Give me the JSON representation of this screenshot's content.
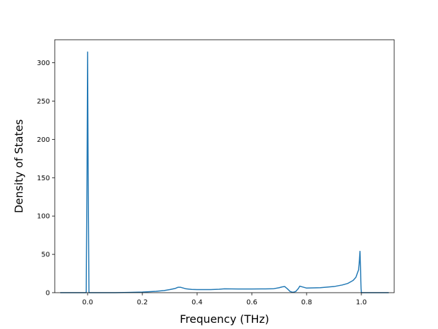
{
  "chart_data": {
    "type": "line",
    "title": "",
    "xlabel": "Frequency (THz)",
    "ylabel": "Density of States",
    "xlim": [
      -0.12,
      1.12
    ],
    "ylim": [
      0,
      330
    ],
    "xticks": [
      0.0,
      0.2,
      0.4,
      0.6,
      0.8,
      1.0
    ],
    "xtick_labels": [
      "0.0",
      "0.2",
      "0.4",
      "0.6",
      "0.8",
      "1.0"
    ],
    "yticks": [
      0,
      50,
      100,
      150,
      200,
      250,
      300
    ],
    "ytick_labels": [
      "0",
      "50",
      "100",
      "150",
      "200",
      "250",
      "300"
    ],
    "grid": false,
    "legend": "none",
    "colors": {
      "line": "#1f77b4",
      "axes": "#000000",
      "background": "#ffffff"
    },
    "series": [
      {
        "x": [
          -0.1,
          -0.05,
          -0.005,
          -0.002,
          0.0,
          0.002,
          0.005,
          0.05,
          0.1,
          0.15,
          0.2,
          0.25,
          0.28,
          0.3,
          0.32,
          0.33,
          0.34,
          0.35,
          0.36,
          0.38,
          0.4,
          0.45,
          0.48,
          0.5,
          0.55,
          0.6,
          0.65,
          0.68,
          0.7,
          0.71,
          0.72,
          0.73,
          0.74,
          0.75,
          0.76,
          0.77,
          0.775,
          0.78,
          0.79,
          0.8,
          0.85,
          0.9,
          0.93,
          0.95,
          0.97,
          0.98,
          0.99,
          0.993,
          0.995,
          0.997,
          0.999,
          1.0,
          1.05,
          1.1
        ],
        "y": [
          0,
          0,
          0,
          160,
          314,
          160,
          0,
          0,
          0,
          0.3,
          0.8,
          1.8,
          2.8,
          4,
          5.5,
          7,
          7,
          6,
          5,
          4.2,
          4,
          4,
          4.5,
          5,
          4.8,
          4.8,
          4.9,
          5.2,
          6.5,
          7.5,
          8,
          5,
          1.5,
          0.5,
          1.5,
          5.5,
          8.5,
          8,
          7,
          6,
          6.5,
          8,
          10,
          12,
          16,
          20,
          30,
          42,
          54,
          30,
          5,
          0,
          0,
          0
        ]
      }
    ]
  }
}
